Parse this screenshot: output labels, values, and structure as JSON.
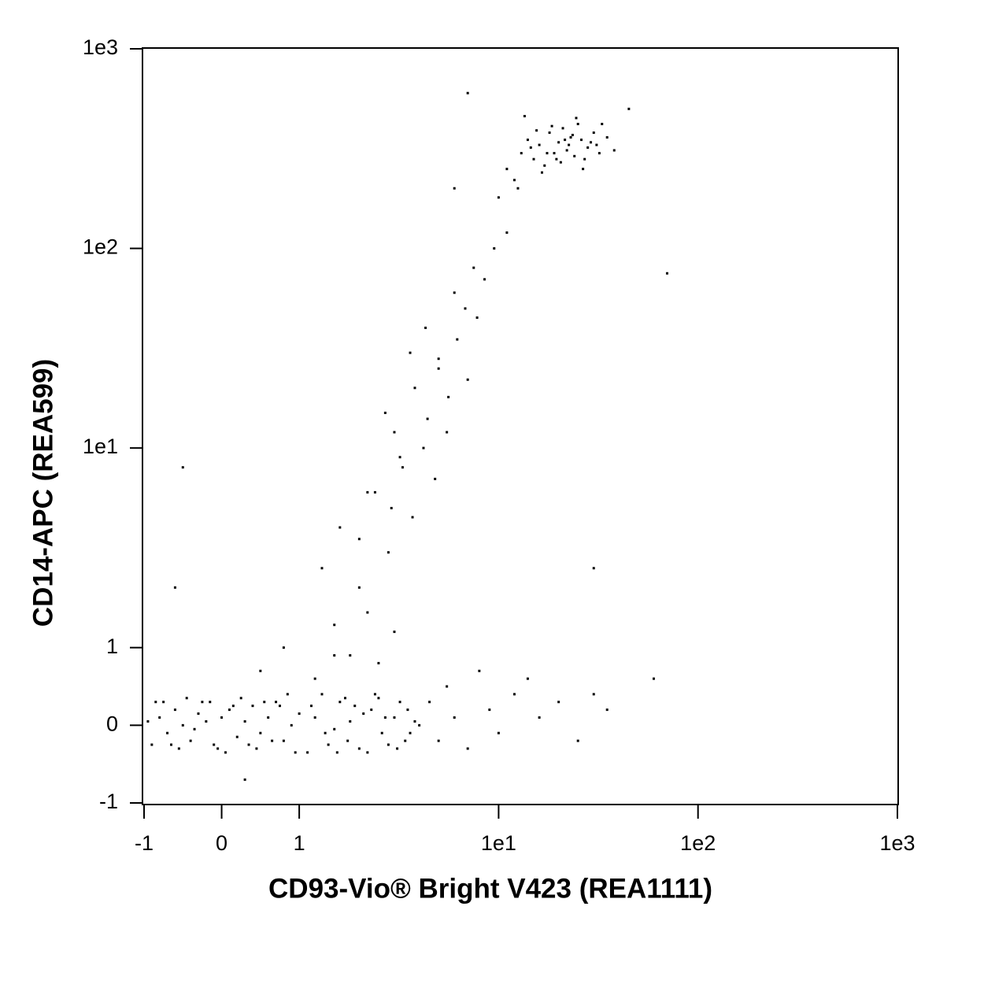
{
  "chart_data": {
    "type": "scatter",
    "x_label": "CD93-Vio® Bright V423 (REA1111)",
    "y_label": "CD14-APC (REA599)",
    "xscale": "biexponential",
    "yscale": "biexponential",
    "xlim": [
      -1,
      1000
    ],
    "ylim": [
      -1,
      1000
    ],
    "xticks": [
      -1,
      0,
      1,
      {
        "value": 10,
        "label": "1e1"
      },
      {
        "value": 100,
        "label": "1e2"
      },
      {
        "value": 1000,
        "label": "1e3"
      }
    ],
    "yticks": [
      -1,
      0,
      1,
      {
        "value": 10,
        "label": "1e1"
      },
      {
        "value": 100,
        "label": "1e2"
      },
      {
        "value": 1000,
        "label": "1e3"
      }
    ],
    "color": "#000000",
    "x": [
      -0.95,
      -0.8,
      -0.7,
      -0.6,
      -0.5,
      -0.4,
      -0.3,
      -0.2,
      -0.1,
      0,
      0.1,
      0.2,
      0.3,
      0.4,
      0.5,
      0.6,
      0.7,
      0.8,
      0.9,
      1,
      1.2,
      1.4,
      1.6,
      1.8,
      2,
      2.3,
      2.6,
      3,
      3.4,
      3.8,
      -0.9,
      -0.75,
      -0.55,
      -0.35,
      -0.15,
      0.05,
      0.25,
      0.45,
      0.65,
      0.85,
      1.1,
      1.3,
      1.5,
      1.7,
      1.9,
      2.2,
      2.5,
      2.8,
      3.2,
      3.6,
      -0.85,
      -0.65,
      -0.45,
      -0.25,
      -0.05,
      0.15,
      0.35,
      0.55,
      0.75,
      0.95,
      1.15,
      1.35,
      1.55,
      1.75,
      2.1,
      2.4,
      2.7,
      3.1,
      3.5,
      4,
      0.5,
      0.8,
      1.2,
      1.5,
      1.8,
      2,
      2.2,
      2.5,
      2.8,
      3,
      1.3,
      1.6,
      2,
      2.4,
      2.9,
      3.3,
      3.7,
      4.2,
      4.8,
      5.5,
      2.2,
      2.7,
      3.2,
      3.8,
      4.4,
      5,
      5.6,
      6.2,
      7,
      7.8,
      3,
      3.6,
      4.3,
      5,
      6,
      6.8,
      7.5,
      8.5,
      9.5,
      11,
      10,
      11,
      12,
      13,
      14,
      15,
      16,
      17,
      18,
      19,
      20,
      21,
      22,
      23,
      24,
      25,
      26,
      28,
      30,
      32,
      12.5,
      14.5,
      16.5,
      18.5,
      20.5,
      22.5,
      24.5,
      27,
      29,
      35,
      15.5,
      17.5,
      19.5,
      21.5,
      23.5,
      26.5,
      31,
      33,
      38,
      13.5,
      4.5,
      5,
      5.5,
      6,
      7,
      8,
      9,
      10,
      12,
      14,
      16,
      20,
      25,
      30,
      35,
      7,
      -0.5,
      -0.6,
      45,
      70,
      60,
      6,
      30,
      1.5,
      0.3
    ],
    "y": [
      0.05,
      0.1,
      -0.1,
      0.2,
      0,
      -0.2,
      0.15,
      0.05,
      -0.25,
      0.1,
      0.2,
      -0.15,
      0.05,
      0.25,
      -0.1,
      0.1,
      0.3,
      -0.2,
      0,
      0.15,
      0.1,
      -0.25,
      0.3,
      0.05,
      -0.3,
      0.2,
      -0.1,
      0.1,
      -0.2,
      0.05,
      -0.25,
      0.3,
      -0.3,
      -0.05,
      0.3,
      -0.35,
      0.35,
      -0.3,
      -0.2,
      0.4,
      -0.35,
      0.4,
      -0.05,
      0.35,
      0.25,
      -0.35,
      0.35,
      -0.25,
      0.3,
      -0.1,
      0.3,
      -0.25,
      0.35,
      0.3,
      -0.3,
      0.25,
      -0.25,
      0.3,
      0.25,
      -0.35,
      0.25,
      -0.1,
      -0.35,
      -0.2,
      0.15,
      0.4,
      0.1,
      -0.3,
      0.2,
      0,
      0.7,
      1,
      0.6,
      1.3,
      0.9,
      2,
      1.5,
      0.8,
      3,
      1.2,
      2.5,
      4,
      3.5,
      6,
      5,
      8,
      4.5,
      10,
      7,
      12,
      6,
      15,
      9,
      20,
      14,
      25,
      18,
      35,
      22,
      45,
      12,
      30,
      40,
      28,
      60,
      50,
      80,
      70,
      100,
      120,
      180,
      250,
      220,
      300,
      350,
      280,
      330,
      260,
      380,
      300,
      340,
      400,
      310,
      360,
      290,
      420,
      350,
      320,
      380,
      300,
      200,
      320,
      240,
      410,
      270,
      330,
      450,
      280,
      340,
      360,
      390,
      300,
      280,
      350,
      370,
      250,
      330,
      420,
      310,
      460,
      0.3,
      -0.2,
      0.5,
      0.1,
      -0.3,
      0.7,
      0.2,
      -0.1,
      0.4,
      0.6,
      0.1,
      0.3,
      -0.2,
      0.4,
      0.2,
      600,
      8,
      2,
      500,
      75,
      0.6,
      200,
      2.5,
      0.9,
      -0.7
    ]
  }
}
